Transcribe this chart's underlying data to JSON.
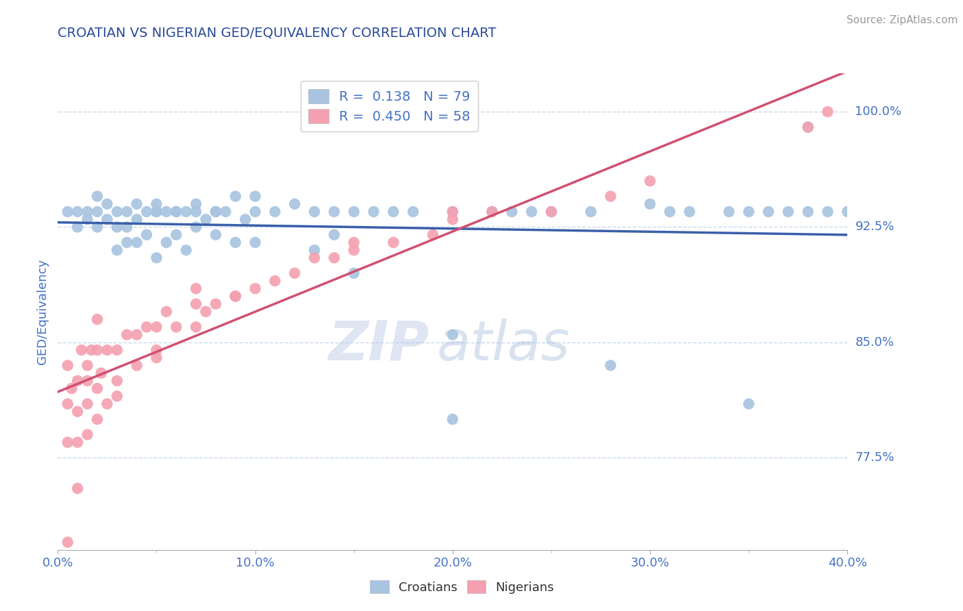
{
  "title": "CROATIAN VS NIGERIAN GED/EQUIVALENCY CORRELATION CHART",
  "source": "Source: ZipAtlas.com",
  "ylabel": "GED/Equivalency",
  "xlim": [
    0.0,
    0.4
  ],
  "ylim": [
    0.715,
    1.025
  ],
  "yticks": [
    0.775,
    0.85,
    0.925,
    1.0
  ],
  "ytick_labels": [
    "77.5%",
    "85.0%",
    "92.5%",
    "100.0%"
  ],
  "xticks": [
    0.0,
    0.1,
    0.2,
    0.3,
    0.4
  ],
  "xtick_labels": [
    "0.0%",
    "10.0%",
    "20.0%",
    "30.0%",
    "40.0%"
  ],
  "croatian_color": "#a8c4e0",
  "nigerian_color": "#f4a0b0",
  "croatian_line_color": "#3a5faa",
  "nigerian_line_color": "#d05070",
  "R_croatian": 0.138,
  "N_croatian": 79,
  "R_nigerian": 0.45,
  "N_nigerian": 58,
  "legend_croatian": "Croatians",
  "legend_nigerian": "Nigerians",
  "watermark_zip": "ZIP",
  "watermark_atlas": "atlas",
  "background_color": "#ffffff",
  "grid_color": "#c8d8ee",
  "title_color": "#2a4a99",
  "axis_label_color": "#4472c4",
  "tick_color": "#4472c4",
  "croatian_scatter_x": [
    0.005,
    0.01,
    0.01,
    0.015,
    0.015,
    0.02,
    0.02,
    0.02,
    0.025,
    0.025,
    0.03,
    0.03,
    0.03,
    0.035,
    0.035,
    0.035,
    0.04,
    0.04,
    0.04,
    0.045,
    0.045,
    0.05,
    0.05,
    0.05,
    0.055,
    0.055,
    0.06,
    0.06,
    0.065,
    0.065,
    0.07,
    0.07,
    0.075,
    0.08,
    0.08,
    0.085,
    0.09,
    0.09,
    0.095,
    0.1,
    0.1,
    0.11,
    0.12,
    0.13,
    0.14,
    0.14,
    0.15,
    0.16,
    0.17,
    0.18,
    0.2,
    0.22,
    0.23,
    0.25,
    0.27,
    0.3,
    0.32,
    0.35,
    0.36,
    0.37,
    0.38,
    0.38,
    0.39,
    0.4,
    0.05,
    0.06,
    0.07,
    0.08,
    0.09,
    0.1,
    0.13,
    0.15,
    0.2,
    0.24,
    0.2,
    0.28,
    0.31,
    0.34,
    0.35
  ],
  "croatian_scatter_y": [
    0.935,
    0.935,
    0.925,
    0.935,
    0.93,
    0.945,
    0.935,
    0.925,
    0.94,
    0.93,
    0.935,
    0.925,
    0.91,
    0.935,
    0.925,
    0.915,
    0.94,
    0.93,
    0.915,
    0.935,
    0.92,
    0.94,
    0.935,
    0.905,
    0.935,
    0.915,
    0.935,
    0.92,
    0.935,
    0.91,
    0.94,
    0.925,
    0.93,
    0.935,
    0.92,
    0.935,
    0.945,
    0.915,
    0.93,
    0.945,
    0.915,
    0.935,
    0.94,
    0.935,
    0.935,
    0.92,
    0.935,
    0.935,
    0.935,
    0.935,
    0.935,
    0.935,
    0.935,
    0.935,
    0.935,
    0.94,
    0.935,
    0.935,
    0.935,
    0.935,
    0.935,
    0.99,
    0.935,
    0.935,
    0.935,
    0.935,
    0.935,
    0.935,
    0.88,
    0.935,
    0.91,
    0.895,
    0.8,
    0.935,
    0.855,
    0.835,
    0.935,
    0.935,
    0.81
  ],
  "nigerian_scatter_x": [
    0.005,
    0.005,
    0.005,
    0.007,
    0.01,
    0.01,
    0.01,
    0.012,
    0.015,
    0.015,
    0.015,
    0.017,
    0.02,
    0.02,
    0.02,
    0.022,
    0.025,
    0.025,
    0.03,
    0.03,
    0.035,
    0.04,
    0.04,
    0.045,
    0.05,
    0.05,
    0.055,
    0.06,
    0.07,
    0.07,
    0.075,
    0.08,
    0.09,
    0.1,
    0.11,
    0.12,
    0.13,
    0.14,
    0.15,
    0.17,
    0.19,
    0.2,
    0.22,
    0.25,
    0.28,
    0.3,
    0.38,
    0.39,
    0.005,
    0.01,
    0.015,
    0.02,
    0.03,
    0.05,
    0.07,
    0.09,
    0.15,
    0.2
  ],
  "nigerian_scatter_y": [
    0.835,
    0.81,
    0.785,
    0.82,
    0.825,
    0.805,
    0.785,
    0.845,
    0.835,
    0.81,
    0.79,
    0.845,
    0.845,
    0.82,
    0.8,
    0.83,
    0.845,
    0.81,
    0.845,
    0.825,
    0.855,
    0.855,
    0.835,
    0.86,
    0.86,
    0.84,
    0.87,
    0.86,
    0.875,
    0.86,
    0.87,
    0.875,
    0.88,
    0.885,
    0.89,
    0.895,
    0.905,
    0.905,
    0.91,
    0.915,
    0.92,
    0.93,
    0.935,
    0.935,
    0.945,
    0.955,
    0.99,
    1.0,
    0.72,
    0.755,
    0.825,
    0.865,
    0.815,
    0.845,
    0.885,
    0.88,
    0.915,
    0.935
  ]
}
